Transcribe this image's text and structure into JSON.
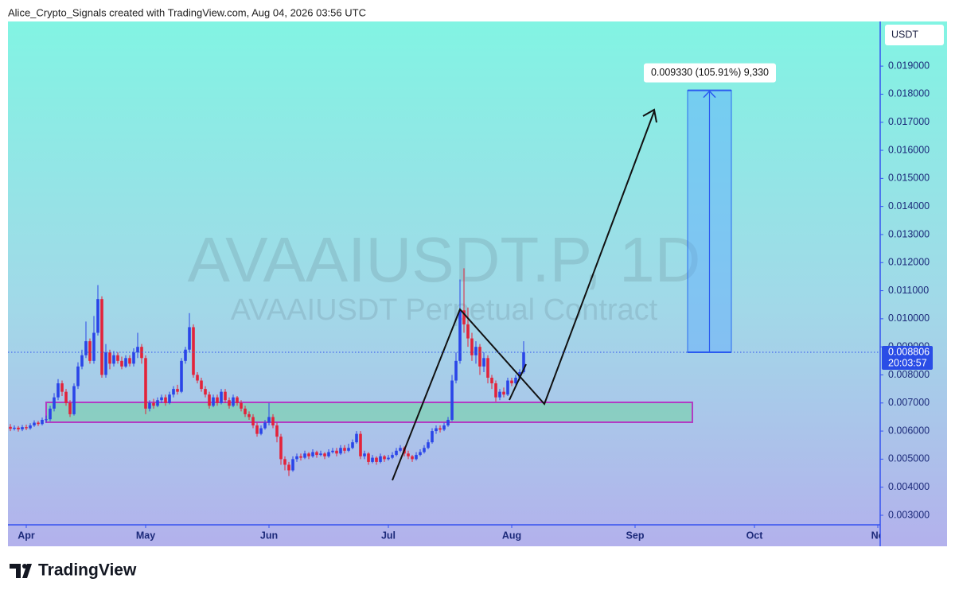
{
  "header": "Alice_Crypto_Signals created with TradingView.com, Aug 04, 2026 03:56 UTC",
  "chart_data": {
    "type": "candlestick",
    "title": "AVAAIUSDT.P, 1D",
    "subtitle": "AVAAIUSDT Perpetual Contract",
    "currency": "USDT",
    "up_color": "#2a45e8",
    "down_color": "#e3233a",
    "ohlc": [
      [
        0.00615,
        0.00625,
        0.006,
        0.00608
      ],
      [
        0.00608,
        0.0062,
        0.00602,
        0.00612
      ],
      [
        0.00612,
        0.00618,
        0.00598,
        0.00606
      ],
      [
        0.00606,
        0.00622,
        0.006,
        0.00614
      ],
      [
        0.00614,
        0.00623,
        0.00603,
        0.0061
      ],
      [
        0.0061,
        0.00628,
        0.00605,
        0.0062
      ],
      [
        0.0062,
        0.00638,
        0.00615,
        0.0063
      ],
      [
        0.0063,
        0.00636,
        0.00618,
        0.00625
      ],
      [
        0.00625,
        0.00648,
        0.0062,
        0.0064
      ],
      [
        0.0064,
        0.00655,
        0.0063,
        0.00642
      ],
      [
        0.00642,
        0.0069,
        0.00635,
        0.0068
      ],
      [
        0.0068,
        0.00735,
        0.0067,
        0.0072
      ],
      [
        0.0072,
        0.00785,
        0.0071,
        0.0077
      ],
      [
        0.0077,
        0.0078,
        0.00725,
        0.0074
      ],
      [
        0.0074,
        0.0075,
        0.0069,
        0.007
      ],
      [
        0.007,
        0.0071,
        0.0065,
        0.0066
      ],
      [
        0.0066,
        0.0077,
        0.00655,
        0.0076
      ],
      [
        0.0076,
        0.00845,
        0.0075,
        0.0083
      ],
      [
        0.0083,
        0.0089,
        0.0082,
        0.0087
      ],
      [
        0.0087,
        0.0099,
        0.0086,
        0.0092
      ],
      [
        0.0092,
        0.0093,
        0.0084,
        0.0085
      ],
      [
        0.0085,
        0.0101,
        0.0084,
        0.0095
      ],
      [
        0.0095,
        0.0112,
        0.0094,
        0.0107
      ],
      [
        0.0107,
        0.0108,
        0.0079,
        0.008
      ],
      [
        0.008,
        0.0091,
        0.0079,
        0.0088
      ],
      [
        0.0088,
        0.0089,
        0.0082,
        0.0084
      ],
      [
        0.0084,
        0.00885,
        0.0083,
        0.0087
      ],
      [
        0.0087,
        0.0088,
        0.0084,
        0.0085
      ],
      [
        0.0085,
        0.00865,
        0.0082,
        0.0083
      ],
      [
        0.0083,
        0.0087,
        0.00825,
        0.0086
      ],
      [
        0.0086,
        0.0087,
        0.0083,
        0.0084
      ],
      [
        0.0084,
        0.00895,
        0.0083,
        0.0088
      ],
      [
        0.0088,
        0.0095,
        0.0086,
        0.009
      ],
      [
        0.009,
        0.0091,
        0.0084,
        0.0086
      ],
      [
        0.0086,
        0.0087,
        0.0066,
        0.0068
      ],
      [
        0.0068,
        0.0071,
        0.0067,
        0.007
      ],
      [
        0.007,
        0.00715,
        0.0068,
        0.0069
      ],
      [
        0.0069,
        0.0072,
        0.00685,
        0.0071
      ],
      [
        0.0071,
        0.0073,
        0.007,
        0.0072
      ],
      [
        0.0072,
        0.0073,
        0.0069,
        0.007
      ],
      [
        0.007,
        0.0074,
        0.00695,
        0.0073
      ],
      [
        0.0073,
        0.0076,
        0.0072,
        0.0075
      ],
      [
        0.0075,
        0.00765,
        0.0073,
        0.0074
      ],
      [
        0.0074,
        0.0086,
        0.00735,
        0.0085
      ],
      [
        0.0085,
        0.009,
        0.0084,
        0.0089
      ],
      [
        0.0089,
        0.0102,
        0.0088,
        0.0097
      ],
      [
        0.0097,
        0.0098,
        0.0079,
        0.008
      ],
      [
        0.008,
        0.0081,
        0.0077,
        0.0078
      ],
      [
        0.0078,
        0.0079,
        0.0074,
        0.0075
      ],
      [
        0.0075,
        0.0076,
        0.0072,
        0.0073
      ],
      [
        0.0073,
        0.0074,
        0.0068,
        0.0069
      ],
      [
        0.0069,
        0.0073,
        0.00685,
        0.0072
      ],
      [
        0.0072,
        0.0073,
        0.0069,
        0.007
      ],
      [
        0.007,
        0.0075,
        0.00695,
        0.0074
      ],
      [
        0.0074,
        0.0075,
        0.007,
        0.0071
      ],
      [
        0.0071,
        0.0072,
        0.0068,
        0.0069
      ],
      [
        0.0069,
        0.0073,
        0.00685,
        0.0072
      ],
      [
        0.0072,
        0.00725,
        0.0069,
        0.007
      ],
      [
        0.007,
        0.0071,
        0.0067,
        0.0068
      ],
      [
        0.0068,
        0.0069,
        0.0065,
        0.0066
      ],
      [
        0.0066,
        0.0067,
        0.0064,
        0.0065
      ],
      [
        0.0065,
        0.0066,
        0.0061,
        0.0062
      ],
      [
        0.0062,
        0.0063,
        0.0058,
        0.0059
      ],
      [
        0.0059,
        0.0062,
        0.00585,
        0.0061
      ],
      [
        0.0061,
        0.0064,
        0.00605,
        0.0063
      ],
      [
        0.0063,
        0.007,
        0.0062,
        0.0065
      ],
      [
        0.0065,
        0.0066,
        0.0061,
        0.0062
      ],
      [
        0.0062,
        0.0063,
        0.0056,
        0.0058
      ],
      [
        0.0058,
        0.0059,
        0.0048,
        0.005
      ],
      [
        0.005,
        0.0051,
        0.0046,
        0.0048
      ],
      [
        0.0048,
        0.0049,
        0.0044,
        0.0046
      ],
      [
        0.0046,
        0.0051,
        0.00455,
        0.005
      ],
      [
        0.005,
        0.0052,
        0.0049,
        0.0051
      ],
      [
        0.0051,
        0.0052,
        0.00495,
        0.00505
      ],
      [
        0.00505,
        0.0053,
        0.005,
        0.0052
      ],
      [
        0.0052,
        0.00525,
        0.005,
        0.0051
      ],
      [
        0.0051,
        0.00535,
        0.00505,
        0.00525
      ],
      [
        0.00525,
        0.0053,
        0.00505,
        0.00515
      ],
      [
        0.00515,
        0.0053,
        0.0051,
        0.0052
      ],
      [
        0.0052,
        0.00525,
        0.005,
        0.0051
      ],
      [
        0.0051,
        0.00535,
        0.00505,
        0.00525
      ],
      [
        0.00525,
        0.0054,
        0.0052,
        0.0053
      ],
      [
        0.0053,
        0.0054,
        0.0051,
        0.0052
      ],
      [
        0.0052,
        0.0055,
        0.00515,
        0.0054
      ],
      [
        0.0054,
        0.0055,
        0.0052,
        0.0053
      ],
      [
        0.0053,
        0.00555,
        0.00525,
        0.0054
      ],
      [
        0.0054,
        0.0057,
        0.00535,
        0.0056
      ],
      [
        0.0056,
        0.006,
        0.00555,
        0.0059
      ],
      [
        0.0059,
        0.006,
        0.005,
        0.0051
      ],
      [
        0.0051,
        0.0053,
        0.005,
        0.0052
      ],
      [
        0.0052,
        0.00525,
        0.0048,
        0.0049
      ],
      [
        0.0049,
        0.00515,
        0.00485,
        0.00505
      ],
      [
        0.00505,
        0.0051,
        0.0048,
        0.0049
      ],
      [
        0.0049,
        0.0052,
        0.00485,
        0.0051
      ],
      [
        0.0051,
        0.00515,
        0.0049,
        0.005
      ],
      [
        0.005,
        0.00515,
        0.00495,
        0.00505
      ],
      [
        0.00505,
        0.00525,
        0.005,
        0.00515
      ],
      [
        0.00515,
        0.0054,
        0.0051,
        0.0053
      ],
      [
        0.0053,
        0.0055,
        0.00525,
        0.0054
      ],
      [
        0.0054,
        0.00545,
        0.0051,
        0.0052
      ],
      [
        0.0052,
        0.0053,
        0.005,
        0.0051
      ],
      [
        0.0051,
        0.00515,
        0.0049,
        0.005
      ],
      [
        0.005,
        0.00525,
        0.00495,
        0.00515
      ],
      [
        0.00515,
        0.00535,
        0.0051,
        0.00525
      ],
      [
        0.00525,
        0.0055,
        0.0052,
        0.0054
      ],
      [
        0.0054,
        0.0057,
        0.00535,
        0.0056
      ],
      [
        0.0056,
        0.0061,
        0.00555,
        0.006
      ],
      [
        0.006,
        0.0062,
        0.0059,
        0.0061
      ],
      [
        0.0061,
        0.0062,
        0.00595,
        0.00605
      ],
      [
        0.00605,
        0.0063,
        0.006,
        0.0062
      ],
      [
        0.0062,
        0.0065,
        0.00615,
        0.0064
      ],
      [
        0.0064,
        0.008,
        0.00635,
        0.0078
      ],
      [
        0.0078,
        0.0088,
        0.0077,
        0.0085
      ],
      [
        0.0085,
        0.0114,
        0.0084,
        0.0103
      ],
      [
        0.0103,
        0.0118,
        0.0095,
        0.0098
      ],
      [
        0.0098,
        0.0104,
        0.009,
        0.0093
      ],
      [
        0.0093,
        0.0095,
        0.0085,
        0.0087
      ],
      [
        0.0087,
        0.0092,
        0.0084,
        0.009
      ],
      [
        0.009,
        0.0091,
        0.008,
        0.0083
      ],
      [
        0.0083,
        0.0088,
        0.0081,
        0.0086
      ],
      [
        0.0086,
        0.0087,
        0.0077,
        0.0079
      ],
      [
        0.0079,
        0.008,
        0.0075,
        0.0077
      ],
      [
        0.0077,
        0.0078,
        0.00705,
        0.0072
      ],
      [
        0.0072,
        0.0075,
        0.0071,
        0.0074
      ],
      [
        0.0074,
        0.00755,
        0.0072,
        0.0073
      ],
      [
        0.0073,
        0.0079,
        0.00725,
        0.0078
      ],
      [
        0.0078,
        0.0079,
        0.0076,
        0.0077
      ],
      [
        0.0077,
        0.008,
        0.00765,
        0.0079
      ],
      [
        0.0079,
        0.0082,
        0.0078,
        0.0081
      ],
      [
        0.0081,
        0.0092,
        0.00805,
        0.008806
      ]
    ],
    "xlim": [
      -0.6,
      218.6
    ],
    "xticks": [
      {
        "value": 4,
        "label": "Apr"
      },
      {
        "value": 34,
        "label": "May"
      },
      {
        "value": 65,
        "label": "Jun"
      },
      {
        "value": 95,
        "label": "Jul"
      },
      {
        "value": 126,
        "label": "Aug"
      },
      {
        "value": 157,
        "label": "Sep"
      },
      {
        "value": 187,
        "label": "Oct"
      },
      {
        "value": 218,
        "label": "No"
      }
    ],
    "ylim": [
      0.00266,
      0.02059
    ],
    "yticks": [
      {
        "value": 0.003,
        "label": "0.003000"
      },
      {
        "value": 0.004,
        "label": "0.004000"
      },
      {
        "value": 0.005,
        "label": "0.005000"
      },
      {
        "value": 0.006,
        "label": "0.006000"
      },
      {
        "value": 0.007,
        "label": "0.007000"
      },
      {
        "value": 0.008,
        "label": "0.008000"
      },
      {
        "value": 0.009,
        "label": "0.009000"
      },
      {
        "value": 0.01,
        "label": "0.010000"
      },
      {
        "value": 0.011,
        "label": "0.011000"
      },
      {
        "value": 0.012,
        "label": "0.012000"
      },
      {
        "value": 0.013,
        "label": "0.013000"
      },
      {
        "value": 0.014,
        "label": "0.014000"
      },
      {
        "value": 0.015,
        "label": "0.015000"
      },
      {
        "value": 0.016,
        "label": "0.016000"
      },
      {
        "value": 0.017,
        "label": "0.017000"
      },
      {
        "value": 0.018,
        "label": "0.018000"
      },
      {
        "value": 0.019,
        "label": "0.019000"
      }
    ],
    "last_price": 0.008806,
    "countdown": "20:03:57",
    "projection": {
      "change": 0.00933,
      "label": "0.009330 (105.91%) 9,330"
    }
  },
  "footer": "TradingView"
}
